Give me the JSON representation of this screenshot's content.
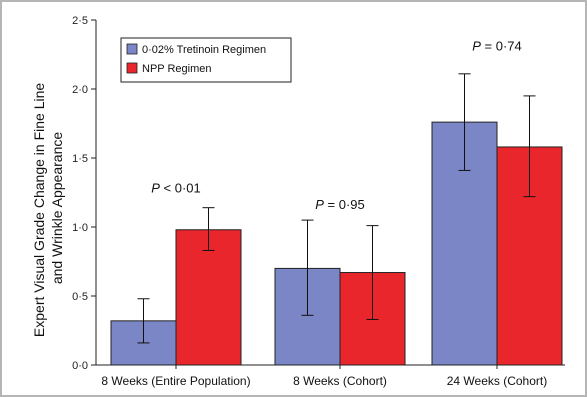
{
  "chart_data": {
    "type": "bar",
    "title": "",
    "xlabel": "",
    "ylabel_lines": [
      "Expert Visual Grade Change in Fine Line",
      "and Wrinkle Appearance"
    ],
    "ylim": [
      0,
      2.5
    ],
    "yticks": [
      "0·0",
      "0·5",
      "1·0",
      "1·5",
      "2·0",
      "2·5"
    ],
    "categories": [
      "8 Weeks (Entire Population)",
      "8 Weeks (Cohort)",
      "24 Weeks (Cohort)"
    ],
    "legend_position": "top-left",
    "grid": false,
    "series": [
      {
        "name": "0·02% Tretinoin Regimen",
        "color": "#7b86c6",
        "values": [
          0.32,
          0.7,
          1.76
        ],
        "err_low": [
          0.16,
          0.36,
          1.41
        ],
        "err_high": [
          0.48,
          1.05,
          2.11
        ]
      },
      {
        "name": "NPP Regimen",
        "color": "#e8262b",
        "values": [
          0.98,
          0.67,
          1.58
        ],
        "err_low": [
          0.83,
          0.33,
          1.22
        ],
        "err_high": [
          1.14,
          1.01,
          1.95
        ]
      }
    ],
    "annotations": [
      {
        "category_index": 0,
        "prefix": "P",
        "text": " < 0·01",
        "y": 1.25
      },
      {
        "category_index": 1,
        "prefix": "P",
        "text": " = 0·95",
        "y": 1.13
      },
      {
        "category_index": 2,
        "prefix": "P",
        "text": " = 0·74",
        "y": 2.28
      }
    ]
  }
}
